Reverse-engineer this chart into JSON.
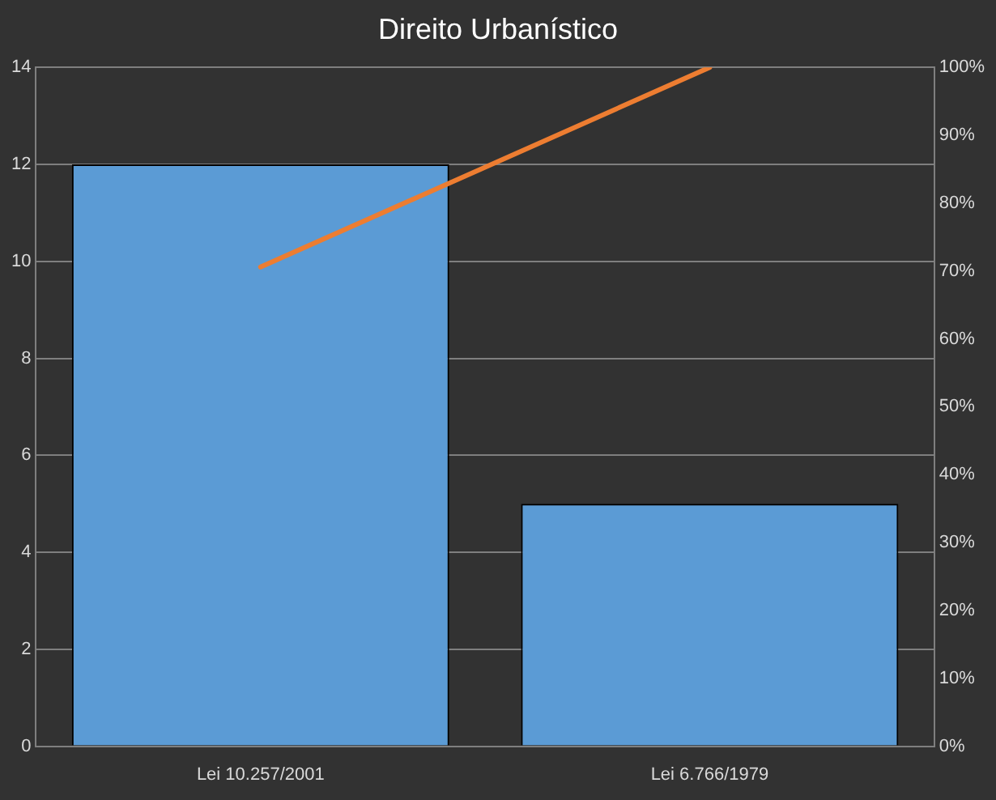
{
  "chart_data": {
    "type": "bar",
    "title": "Direito Urbanístico",
    "categories": [
      "Lei 10.257/2001",
      "Lei 6.766/1979"
    ],
    "series": [
      {
        "color": "#5b9bd5",
        "values": [
          12,
          5
        ]
      },
      {
        "type": "line",
        "axis": "y2",
        "color": "#ed7d31",
        "values": [
          70.6,
          100
        ]
      }
    ],
    "ylim": [
      0,
      14
    ],
    "yticks": [
      0,
      2,
      4,
      6,
      8,
      10,
      12,
      14
    ],
    "y2lim": [
      0,
      100
    ],
    "y2ticks": [
      {
        "value": 0,
        "label": "0%"
      },
      {
        "value": 10,
        "label": "10%"
      },
      {
        "value": 20,
        "label": "20%"
      },
      {
        "value": 30,
        "label": "30%"
      },
      {
        "value": 40,
        "label": "40%"
      },
      {
        "value": 50,
        "label": "50%"
      },
      {
        "value": 60,
        "label": "60%"
      },
      {
        "value": 70,
        "label": "70%"
      },
      {
        "value": 80,
        "label": "80%"
      },
      {
        "value": 90,
        "label": "90%"
      },
      {
        "value": 100,
        "label": "100%"
      }
    ],
    "grid": "y",
    "legend": false,
    "marker": "none"
  }
}
